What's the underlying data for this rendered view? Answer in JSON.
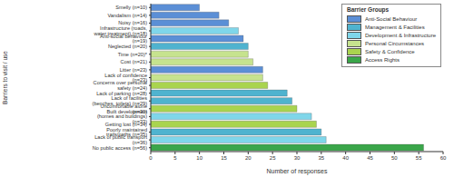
{
  "chart_data": {
    "type": "bar",
    "orientation": "horizontal",
    "x_label": "Number of responses",
    "y_label": "Barriers to visit / use",
    "categories": [
      "Smelly (n=10)",
      "Vandalism (n=14)",
      "Noisy (n=16)",
      "Infrastructure (roads, water treatment) (n=18)",
      "Anti-social behaviour (n=19)",
      "Neglected (n=20)",
      "Time (n=20)*",
      "Cost (n=21)",
      "Litter (n=23)",
      "Lack of confidence (n=23)",
      "Concerns over personal safety (n=24)",
      "Lack of parking (n=28)",
      "Lack of facilities (benches, toilets) (n=29)",
      "Uncomfortable alone (n=30)",
      "Built development (homes and buildings) (n=33)",
      "Getting lost (n=34)",
      "Poorly maintained trails/paths (n=35)",
      "Lack of public transport (n=36)",
      "No public access (n=56)"
    ],
    "values": [
      10,
      14,
      16,
      18,
      19,
      20,
      20,
      21,
      23,
      23,
      24,
      28,
      29,
      30,
      33,
      34,
      35,
      36,
      56
    ],
    "colors": [
      "#5b8fd6",
      "#5b8fd6",
      "#5b8fd6",
      "#7fd6ea",
      "#5b8fd6",
      "#4fb3cf",
      "#c6e38e",
      "#c6e38e",
      "#5b8fd6",
      "#c6e38e",
      "#a9d44f",
      "#4fb3cf",
      "#4fb3cf",
      "#a9d44f",
      "#7fd6ea",
      "#a9d44f",
      "#4fb3cf",
      "#7fd6ea",
      "#3aa64a"
    ],
    "xlim": [
      0,
      60
    ],
    "xticks": [
      0,
      5,
      10,
      15,
      20,
      25,
      30,
      35,
      40,
      45,
      50,
      55,
      60
    ],
    "grid": false,
    "legend": "upper right",
    "legend_title": "Barrier Groups",
    "groups": [
      {
        "name": "Anti-Social Behaviour",
        "color": "#5b8fd6"
      },
      {
        "name": "Management & Facilities",
        "color": "#4fb3cf"
      },
      {
        "name": "Development & Infrastructure",
        "color": "#7fd6ea"
      },
      {
        "name": "Personal Circumstances",
        "color": "#c6e38e"
      },
      {
        "name": "Safety & Confidence",
        "color": "#a9d44f"
      },
      {
        "name": "Access Rights",
        "color": "#3aa64a"
      }
    ]
  }
}
